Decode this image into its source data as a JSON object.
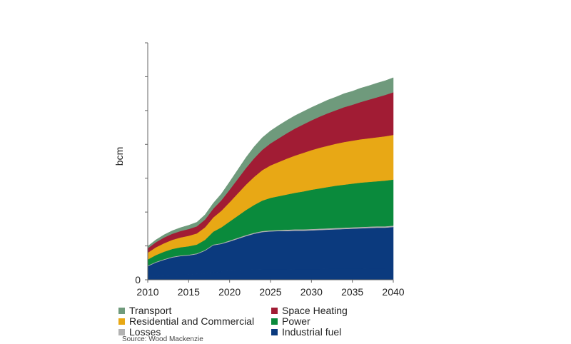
{
  "chart_data": {
    "type": "area",
    "stacked": true,
    "title": "",
    "xlabel": "",
    "ylabel": "bcm",
    "x": [
      2010,
      2011,
      2012,
      2013,
      2014,
      2015,
      2016,
      2017,
      2018,
      2019,
      2020,
      2021,
      2022,
      2023,
      2024,
      2025,
      2026,
      2027,
      2028,
      2029,
      2030,
      2031,
      2032,
      2033,
      2034,
      2035,
      2036,
      2037,
      2038,
      2039,
      2040
    ],
    "xticks": [
      "2010",
      "2015",
      "2020",
      "2025",
      "2030",
      "2035",
      "2040"
    ],
    "yticks": [
      "0"
    ],
    "ylim": [
      0,
      700
    ],
    "grid": false,
    "legend_position": "bottom",
    "series": [
      {
        "name": "Industrial fuel",
        "color": "#0b3a7e",
        "values": [
          8,
          10,
          12,
          13,
          14,
          15,
          17,
          19,
          22,
          24,
          26,
          28,
          29,
          30,
          31,
          31,
          31,
          31,
          32,
          32,
          32,
          32,
          33,
          33,
          33,
          33,
          33,
          34,
          34,
          34,
          35
        ]
      },
      {
        "name": "Industrial fuel",
        "color": "#0b3a7e",
        "values": [
          32,
          41,
          47,
          53,
          56,
          57,
          59,
          67,
          80,
          82,
          87,
          93,
          100,
          106,
          110,
          112,
          113,
          113,
          113,
          113,
          114,
          115,
          115,
          116,
          117,
          118,
          119,
          119,
          120,
          120,
          121
        ]
      },
      {
        "name": "Losses",
        "color": "#b2b2b2",
        "values": [
          2,
          2,
          2,
          2,
          2,
          2,
          2,
          2,
          2,
          2,
          3,
          3,
          3,
          3,
          3,
          3,
          3,
          4,
          4,
          4,
          4,
          4,
          4,
          4,
          4,
          4,
          4,
          4,
          4,
          4,
          4
        ]
      },
      {
        "name": "Power",
        "color": "#0a8a3c",
        "values": [
          18,
          20,
          22,
          23,
          24,
          25,
          26,
          30,
          38,
          47,
          56,
          65,
          74,
          82,
          90,
          96,
          100,
          104,
          108,
          112,
          116,
          119,
          122,
          125,
          127,
          129,
          131,
          132,
          133,
          135,
          136
        ]
      },
      {
        "name": "Residential and Commercial",
        "color": "#e8a815",
        "values": [
          20,
          23,
          25,
          27,
          29,
          31,
          33,
          37,
          42,
          49,
          57,
          66,
          75,
          83,
          90,
          96,
          101,
          106,
          110,
          114,
          117,
          120,
          122,
          124,
          126,
          127,
          128,
          129,
          130,
          131,
          132
        ]
      },
      {
        "name": "Space Heating",
        "color": "#a11c34",
        "values": [
          13,
          15,
          17,
          18,
          19,
          20,
          21,
          23,
          26,
          31,
          37,
          43,
          49,
          55,
          60,
          65,
          70,
          75,
          80,
          84,
          88,
          92,
          96,
          99,
          103,
          106,
          110,
          114,
          118,
          122,
          126
        ]
      },
      {
        "name": "Transport",
        "color": "#6f9a7c",
        "values": [
          6,
          7,
          8,
          9,
          10,
          11,
          12,
          14,
          16,
          19,
          23,
          27,
          31,
          34,
          36,
          37,
          38,
          38,
          38,
          38,
          38,
          38,
          39,
          39,
          40,
          40,
          41,
          41,
          42,
          42,
          43
        ]
      }
    ]
  },
  "legend": [
    {
      "label": "Transport",
      "color": "#6f9a7c"
    },
    {
      "label": "Space Heating",
      "color": "#a11c34"
    },
    {
      "label": "Residential and Commercial",
      "color": "#e8a815"
    },
    {
      "label": "Power",
      "color": "#0a8a3c"
    },
    {
      "label": "Losses",
      "color": "#b2b2b2"
    },
    {
      "label": "Industrial fuel",
      "color": "#0b3a7e"
    }
  ],
  "source": "Source: Wood Mackenzie"
}
